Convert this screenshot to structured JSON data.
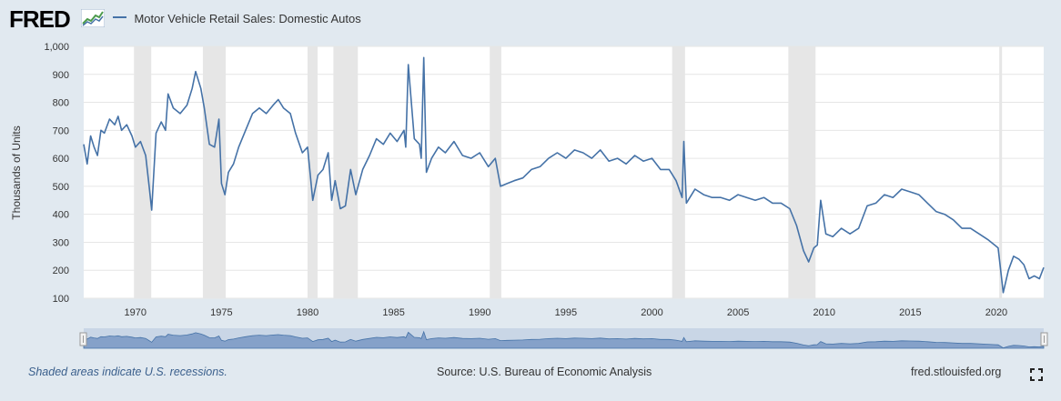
{
  "header": {
    "logo_text": "FRED",
    "logo_icon": "fred-chart-icon",
    "series_name": "Motor Vehicle Retail Sales: Domestic Autos"
  },
  "footer": {
    "note": "Shaded areas indicate U.S. recessions.",
    "source": "Source: U.S. Bureau of Economic Analysis",
    "site": "fred.stlouisfed.org",
    "fullscreen_icon": "fullscreen-icon"
  },
  "colors": {
    "background": "#e1e9f0",
    "plot_bg": "#ffffff",
    "series": "#4572a7",
    "recession": "#e6e6e6",
    "navigator_fill": "#6d8fbf"
  },
  "chart_data": {
    "type": "line",
    "title": "",
    "ylabel": "Thousands of Units",
    "xlabel": "",
    "ylim": [
      100,
      1000
    ],
    "xlim": [
      1967.0,
      2022.75
    ],
    "yticks": [
      "100",
      "200",
      "300",
      "400",
      "500",
      "600",
      "700",
      "800",
      "900",
      "1,000"
    ],
    "xticks": [
      "1970",
      "1975",
      "1980",
      "1985",
      "1990",
      "1995",
      "2000",
      "2005",
      "2010",
      "2015",
      "2020"
    ],
    "grid": true,
    "legend_position": "top",
    "recessions": [
      [
        1969.92,
        1970.92
      ],
      [
        1973.92,
        1975.25
      ],
      [
        1980.0,
        1980.58
      ],
      [
        1981.5,
        1982.92
      ],
      [
        1990.58,
        1991.25
      ],
      [
        2001.17,
        2001.92
      ],
      [
        2007.92,
        2009.5
      ],
      [
        2020.17,
        2020.33
      ]
    ],
    "series": [
      {
        "name": "Motor Vehicle Retail Sales: Domestic Autos",
        "x": [
          1967.0,
          1967.2,
          1967.4,
          1967.6,
          1967.8,
          1968.0,
          1968.2,
          1968.5,
          1968.8,
          1969.0,
          1969.2,
          1969.5,
          1969.8,
          1970.0,
          1970.3,
          1970.6,
          1970.8,
          1970.95,
          1971.2,
          1971.5,
          1971.75,
          1971.9,
          1972.2,
          1972.6,
          1973.0,
          1973.3,
          1973.5,
          1973.8,
          1974.0,
          1974.3,
          1974.6,
          1974.85,
          1975.0,
          1975.2,
          1975.4,
          1975.7,
          1976.0,
          1976.4,
          1976.8,
          1977.2,
          1977.6,
          1978.0,
          1978.3,
          1978.6,
          1979.0,
          1979.3,
          1979.7,
          1980.0,
          1980.3,
          1980.6,
          1980.9,
          1981.2,
          1981.4,
          1981.6,
          1981.9,
          1982.2,
          1982.5,
          1982.8,
          1983.2,
          1983.6,
          1984.0,
          1984.4,
          1984.8,
          1985.2,
          1985.6,
          1985.7,
          1985.85,
          1986.2,
          1986.5,
          1986.6,
          1986.75,
          1986.9,
          1987.2,
          1987.6,
          1988.0,
          1988.5,
          1989.0,
          1989.5,
          1990.0,
          1990.5,
          1990.9,
          1991.2,
          1991.6,
          1992.0,
          1992.5,
          1993.0,
          1993.5,
          1994.0,
          1994.5,
          1995.0,
          1995.5,
          1996.0,
          1996.5,
          1997.0,
          1997.5,
          1998.0,
          1998.5,
          1999.0,
          1999.5,
          2000.0,
          2000.5,
          2001.0,
          2001.4,
          2001.75,
          2001.85,
          2002.0,
          2002.5,
          2003.0,
          2003.5,
          2004.0,
          2004.5,
          2005.0,
          2005.5,
          2006.0,
          2006.5,
          2007.0,
          2007.5,
          2008.0,
          2008.4,
          2008.8,
          2009.1,
          2009.4,
          2009.6,
          2009.8,
          2010.1,
          2010.5,
          2011.0,
          2011.5,
          2012.0,
          2012.5,
          2013.0,
          2013.5,
          2014.0,
          2014.5,
          2015.0,
          2015.5,
          2016.0,
          2016.5,
          2017.0,
          2017.5,
          2018.0,
          2018.5,
          2019.0,
          2019.5,
          2019.9,
          2020.1,
          2020.25,
          2020.4,
          2020.7,
          2021.0,
          2021.3,
          2021.6,
          2021.9,
          2022.2,
          2022.5,
          2022.75
        ],
        "values": [
          650,
          580,
          680,
          640,
          610,
          700,
          690,
          740,
          720,
          750,
          700,
          720,
          680,
          640,
          660,
          610,
          500,
          415,
          690,
          730,
          700,
          830,
          780,
          760,
          790,
          850,
          910,
          850,
          780,
          650,
          640,
          740,
          510,
          470,
          550,
          580,
          640,
          700,
          760,
          780,
          760,
          790,
          810,
          780,
          760,
          690,
          620,
          640,
          450,
          540,
          560,
          620,
          450,
          520,
          420,
          430,
          560,
          470,
          560,
          610,
          670,
          650,
          690,
          660,
          700,
          640,
          935,
          670,
          650,
          600,
          960,
          550,
          600,
          640,
          620,
          660,
          610,
          600,
          620,
          570,
          600,
          500,
          510,
          520,
          530,
          560,
          570,
          600,
          620,
          600,
          630,
          620,
          600,
          630,
          590,
          600,
          580,
          610,
          590,
          600,
          560,
          560,
          520,
          460,
          660,
          440,
          490,
          470,
          460,
          460,
          450,
          470,
          460,
          450,
          460,
          440,
          440,
          420,
          360,
          270,
          230,
          280,
          290,
          450,
          330,
          320,
          350,
          330,
          350,
          430,
          440,
          470,
          460,
          490,
          480,
          470,
          440,
          410,
          400,
          380,
          350,
          350,
          330,
          310,
          290,
          280,
          200,
          120,
          200,
          250,
          240,
          220,
          170,
          180,
          170,
          210
        ]
      }
    ]
  }
}
